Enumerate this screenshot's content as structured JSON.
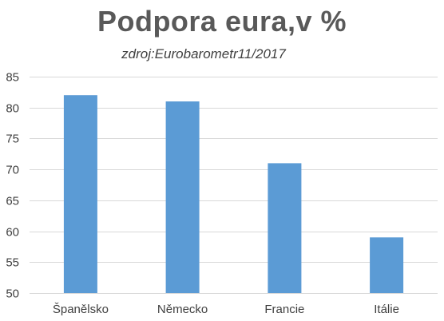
{
  "chart_data": {
    "type": "bar",
    "title": "Podpora eura,v %",
    "subtitle": "zdroj:Eurobarometr11/2017",
    "categories": [
      "Španělsko",
      "Německo",
      "Francie",
      "Itálie"
    ],
    "values": [
      82,
      81,
      71,
      59
    ],
    "ylim": [
      50,
      85
    ],
    "yticks": [
      50,
      55,
      60,
      65,
      70,
      75,
      80,
      85
    ],
    "xlabel": "",
    "ylabel": "",
    "grid": true,
    "colors": {
      "bar": "#5b9bd5",
      "grid": "#d9d9d9",
      "axis_text": "#404040",
      "title": "#595959"
    }
  }
}
